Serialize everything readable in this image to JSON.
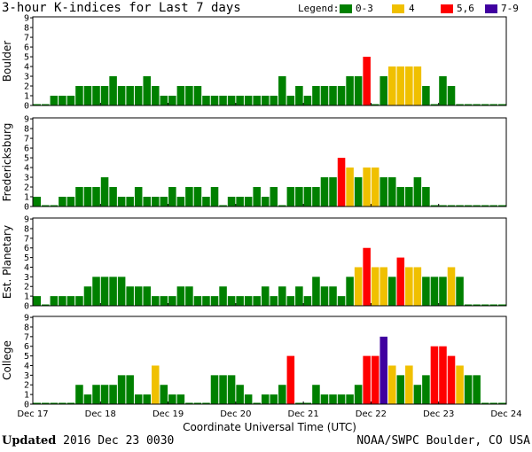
{
  "title": "3-hour K-indices for Last 7 days",
  "legend": {
    "label": "Legend:",
    "items": [
      {
        "label": "0-3",
        "color": "#008000"
      },
      {
        "label": "4",
        "color": "#f0c000"
      },
      {
        "label": "5,6",
        "color": "#ff0000"
      },
      {
        "label": "7-9",
        "color": "#4000a0"
      }
    ]
  },
  "footer": {
    "updated_label": "Updated",
    "updated_value": "2016 Dec 23 0030",
    "credit": "NOAA/SWPC Boulder, CO USA"
  },
  "chart_data": {
    "type": "bar",
    "title": "3-hour K-indices for Last 7 days",
    "xlabel": "Coordinate Universal Time (UTC)",
    "ylim": [
      0,
      9
    ],
    "yticks": [
      0,
      1,
      2,
      3,
      4,
      5,
      6,
      7,
      8,
      9
    ],
    "x_tick_labels": [
      "Dec 17",
      "Dec 18",
      "Dec 19",
      "Dec 20",
      "Dec 21",
      "Dec 22",
      "Dec 23",
      "Dec 24"
    ],
    "bins": 56,
    "color_scale": {
      "0-3": "#008000",
      "4": "#f0c000",
      "5,6": "#ff0000",
      "7-9": "#4000a0"
    },
    "series": [
      {
        "name": "Boulder",
        "values": [
          0,
          0,
          1,
          1,
          1,
          2,
          2,
          2,
          2,
          3,
          2,
          2,
          2,
          3,
          2,
          1,
          1,
          2,
          2,
          2,
          1,
          1,
          1,
          1,
          1,
          1,
          1,
          1,
          1,
          3,
          1,
          2,
          1,
          2,
          2,
          2,
          2,
          3,
          3,
          5,
          0,
          3,
          4,
          4,
          4,
          4,
          2,
          0,
          3,
          2,
          0,
          0,
          0,
          0,
          0,
          0
        ]
      },
      {
        "name": "Fredericksburg",
        "values": [
          1,
          0,
          0,
          1,
          1,
          2,
          2,
          2,
          3,
          2,
          1,
          1,
          2,
          1,
          1,
          1,
          2,
          1,
          2,
          2,
          1,
          2,
          0,
          1,
          1,
          1,
          2,
          1,
          2,
          0,
          2,
          2,
          2,
          2,
          3,
          3,
          5,
          4,
          3,
          4,
          4,
          3,
          3,
          2,
          2,
          3,
          2,
          0,
          0,
          0,
          0,
          0,
          0,
          0,
          0,
          0
        ]
      },
      {
        "name": "Est. Planetary",
        "values": [
          1,
          0,
          1,
          1,
          1,
          1,
          2,
          3,
          3,
          3,
          3,
          2,
          2,
          2,
          1,
          1,
          1,
          2,
          2,
          1,
          1,
          1,
          2,
          1,
          1,
          1,
          1,
          2,
          1,
          2,
          1,
          2,
          1,
          3,
          2,
          2,
          1,
          3,
          4,
          6,
          4,
          4,
          3,
          5,
          4,
          4,
          3,
          3,
          3,
          4,
          3,
          0,
          0,
          0,
          0,
          0
        ]
      },
      {
        "name": "College",
        "values": [
          0,
          0,
          0,
          0,
          0,
          2,
          1,
          2,
          2,
          2,
          3,
          3,
          1,
          1,
          4,
          2,
          1,
          1,
          0,
          0,
          0,
          3,
          3,
          3,
          2,
          1,
          0,
          1,
          1,
          2,
          5,
          0,
          0,
          2,
          1,
          1,
          1,
          1,
          2,
          5,
          5,
          7,
          4,
          3,
          4,
          2,
          3,
          6,
          6,
          5,
          4,
          3,
          3,
          0,
          0,
          0
        ]
      }
    ]
  }
}
